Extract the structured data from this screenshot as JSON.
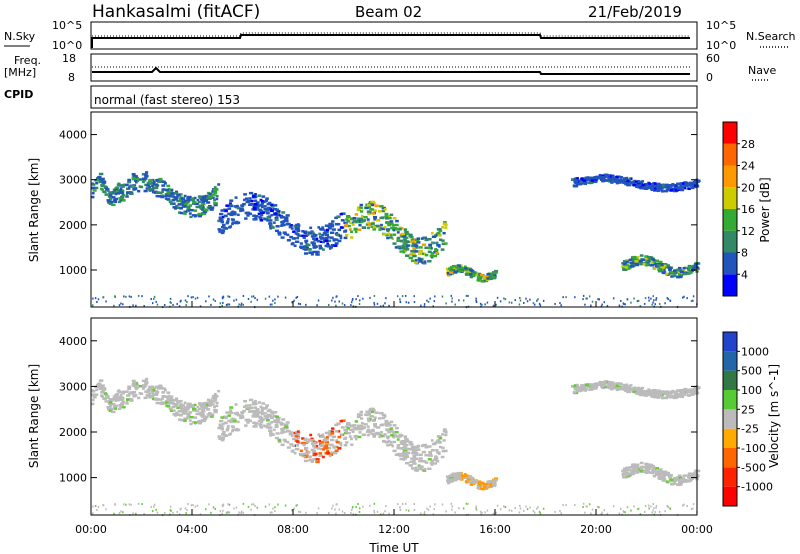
{
  "header": {
    "station": "Hankasalmi (fitACF)",
    "beam": "Beam 02",
    "date": "21/Feb/2019"
  },
  "top_panels": {
    "nsky_label": "N.Sky",
    "nsky_ticks": [
      "10^5",
      "10^0"
    ],
    "nsearch_label": "N.Search",
    "nsearch_ticks": [
      "10^5",
      "10^0"
    ],
    "freq_label": "Freq.",
    "freq_unit": "[MHz]",
    "freq_ticks": [
      "18",
      "8"
    ],
    "nave_label": "Nave",
    "nave_ticks": [
      "60",
      "0"
    ],
    "cpid_label": "CPID",
    "cpid_text": "normal (fast stereo) 153"
  },
  "chart_data": [
    {
      "type": "heatmap",
      "name": "power",
      "xlabel": "",
      "ylabel": "Slant Range [km]",
      "x_range": [
        "00:00",
        "24:00"
      ],
      "ylim": [
        180,
        4500
      ],
      "y_ticks": [
        1000,
        2000,
        3000,
        4000
      ],
      "colorbar_label": "Power [dB]",
      "colorbar_ticks": [
        "4",
        "8",
        "12",
        "16",
        "20",
        "24",
        "28"
      ],
      "colorbar_colors": [
        "#0000ff",
        "#2255bb",
        "#338866",
        "#33aa33",
        "#cccc00",
        "#ff9900",
        "#ff6600",
        "#ff0000"
      ],
      "features": [
        {
          "from": "00:00",
          "to": "01:00",
          "range_km": [
            2500,
            3100
          ],
          "level": "weak-moderate"
        },
        {
          "from": "01:00",
          "to": "05:00",
          "range_km": [
            2300,
            3100
          ],
          "level": "weak-moderate"
        },
        {
          "from": "05:00",
          "to": "10:00",
          "range_km": [
            1500,
            2600
          ],
          "level": "weak"
        },
        {
          "from": "10:00",
          "to": "14:00",
          "range_km": [
            1300,
            2400
          ],
          "level": "moderate-strong"
        },
        {
          "from": "14:00",
          "to": "16:00",
          "range_km": [
            800,
            1100
          ],
          "level": "moderate-strong"
        },
        {
          "from": "19:00",
          "to": "24:00",
          "range_km": [
            2800,
            3100
          ],
          "level": "weak"
        },
        {
          "from": "21:00",
          "to": "24:00",
          "range_km": [
            900,
            1300
          ],
          "level": "moderate"
        }
      ]
    },
    {
      "type": "heatmap",
      "name": "velocity",
      "xlabel": "Time UT",
      "ylabel": "Slant Range [km]",
      "x_ticks": [
        "00:00",
        "04:00",
        "08:00",
        "12:00",
        "16:00",
        "20:00",
        "00:00"
      ],
      "ylim": [
        180,
        4500
      ],
      "y_ticks": [
        1000,
        2000,
        3000,
        4000
      ],
      "colorbar_label": "Velocity [m s^-1]",
      "colorbar_ticks": [
        "1000",
        "500",
        "100",
        "25",
        "-25",
        "-100",
        "-500",
        "-1000"
      ],
      "colorbar_colors": [
        "#2244cc",
        "#2266aa",
        "#337744",
        "#55cc33",
        "#bbbbbb",
        "#ffaa00",
        "#ff6600",
        "#ff2200",
        "#ff0000"
      ]
    }
  ]
}
